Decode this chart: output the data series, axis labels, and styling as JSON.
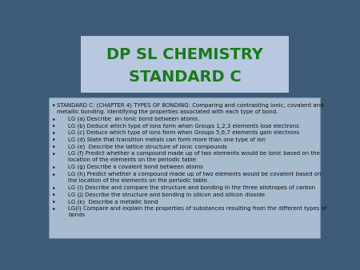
{
  "title_line1": "DP SL CHEMISTRY",
  "title_line2": "STANDARD C",
  "title_color": "#1a7a1a",
  "title_bg_color": "#b8c8e0",
  "slide_bg_color": "#3d5a78",
  "content_bg_color": "#a8bcd0",
  "content_text_color": "#111111",
  "bullet_items": [
    [
      "STANDARD C: (CHAPTER 4) TYPES OF BONDING: Comparing and contrasting ionic, covalent and",
      "metallic bonding. Identifying the properties associated with each type of bond."
    ],
    [
      "LG (a) Describe  an ionic bond between atoms."
    ],
    [
      "LG (b) Deduce which type of ions form when Groups 1,2,3 elements lose electrons"
    ],
    [
      "LG (c) Deduce which type of ions form when Groups 5,6,7 elements gain electrons"
    ],
    [
      "LG (d) State that transition metals can form more than one type of ion"
    ],
    [
      "LG (e)  Describe the lattice structure of ionic compounds"
    ],
    [
      "LG (f) Predict whether a compound made up of two elements would be ionic based on the",
      "location of the elements on the periodic table"
    ],
    [
      "LG (g) Describe a covalent bond between atoms"
    ],
    [
      "LG (h) Predict whether a compound made up of two elements would be covalent based on",
      "the location of the elements on the periodic table."
    ],
    [
      "LG (i) Describe and compare the structure and bonding in the three allotropes of carbon"
    ],
    [
      "LG (j) Describe the structure and bonding in silicon and silicon dioxide"
    ],
    [
      "LG (k)  Describe a metallic bond"
    ],
    [
      "LG(l) Compare and explain the properties of substances resulting from the different types of",
      "bonds"
    ]
  ],
  "first_item_indent": 0,
  "sub_item_indent": 18
}
